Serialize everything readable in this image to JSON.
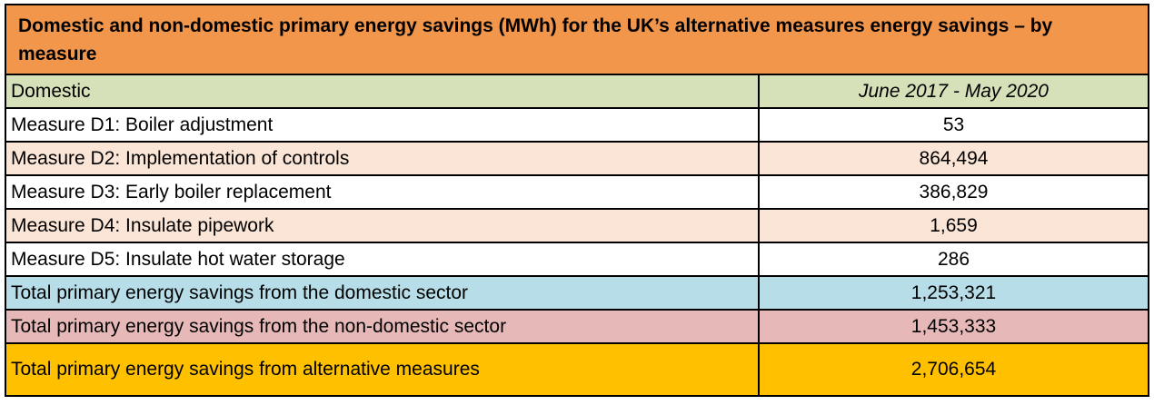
{
  "title": "Domestic and non-domestic primary energy savings (MWh) for the UK’s alternative measures energy savings – by measure",
  "table": {
    "header": {
      "section_label": "Domestic",
      "period_label": "June 2017 - May 2020"
    },
    "rows": [
      {
        "label": "Measure D1: Boiler adjustment",
        "value": "53"
      },
      {
        "label": "Measure D2: Implementation of controls",
        "value": "864,494"
      },
      {
        "label": "Measure D3: Early boiler replacement",
        "value": "386,829"
      },
      {
        "label": "Measure D4: Insulate pipework",
        "value": "1,659"
      },
      {
        "label": "Measure D5: Insulate hot water storage",
        "value": "286"
      },
      {
        "label": "Total primary energy savings from the domestic sector",
        "value": "1,253,321"
      },
      {
        "label": "Total primary energy savings from the non-domestic sector",
        "value": "1,453,333"
      },
      {
        "label": "Total primary energy savings from alternative measures",
        "value": "2,706,654"
      }
    ]
  },
  "colors": {
    "title_orange": "#F2964B",
    "header_green": "#D6E0B9",
    "stripe_peach": "#FBE5D6",
    "total_domestic_blue": "#B7DEE8",
    "total_nondomestic_pink": "#E6B9B8",
    "total_alternative_yellow": "#FFC000",
    "border_black": "#000000"
  },
  "chart_data": {
    "type": "table",
    "title": "Domestic and non-domestic primary energy savings (MWh) for the UK’s alternative measures energy savings – by measure",
    "columns": [
      "Domestic",
      "June 2017 - May 2020"
    ],
    "categories": [
      "Measure D1: Boiler adjustment",
      "Measure D2: Implementation of controls",
      "Measure D3: Early boiler replacement",
      "Measure D4: Insulate pipework",
      "Measure D5: Insulate hot water storage",
      "Total primary energy savings from the domestic sector",
      "Total primary energy savings from the non-domestic sector",
      "Total primary energy savings from alternative measures"
    ],
    "values": [
      53,
      864494,
      386829,
      1659,
      286,
      1253321,
      1453333,
      2706654
    ]
  }
}
